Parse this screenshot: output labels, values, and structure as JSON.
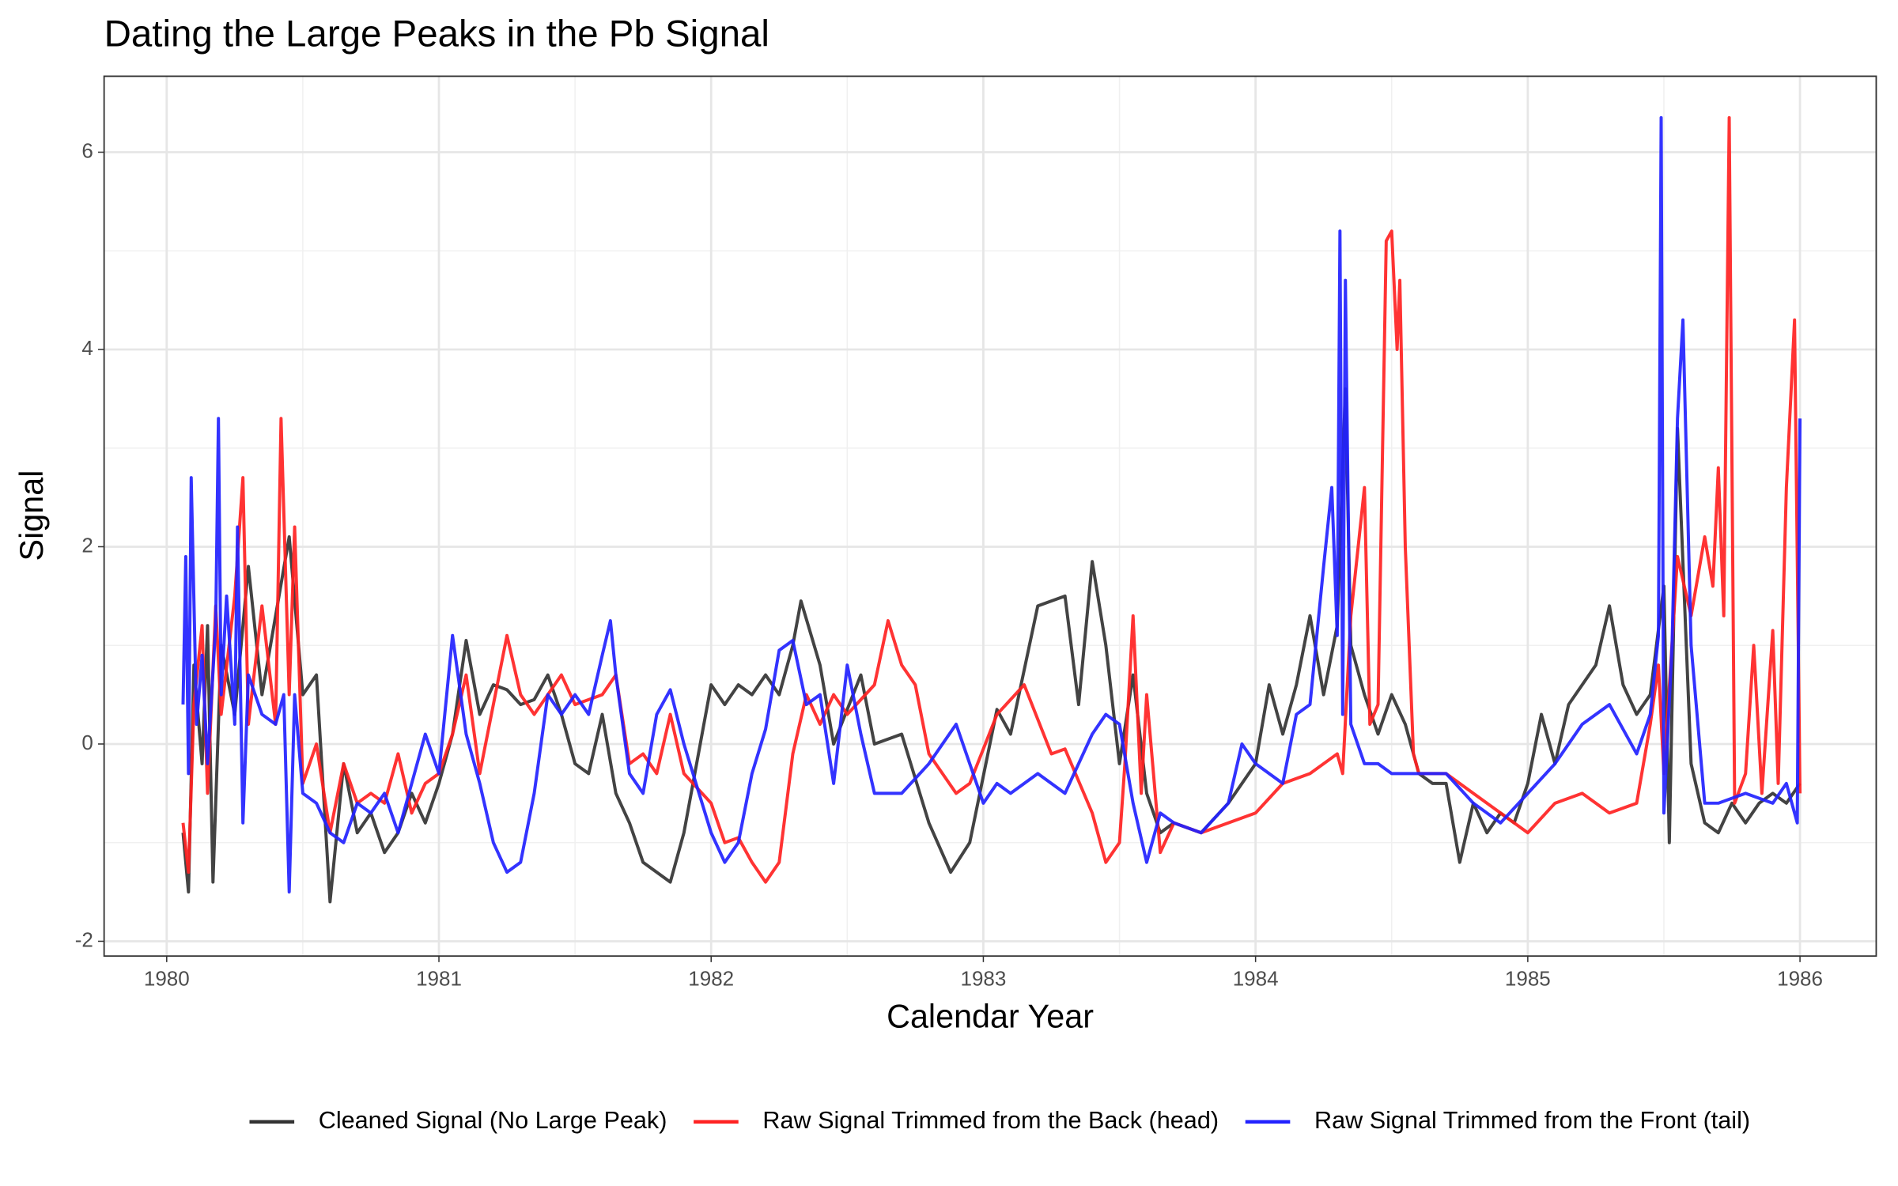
{
  "chart_data": {
    "type": "line",
    "title": "Dating the Large Peaks in the Pb Signal",
    "x_label": "Calendar Year",
    "y_label": "Signal",
    "xlim": [
      1979.77,
      1986.28
    ],
    "ylim": [
      -2.15,
      6.77
    ],
    "xticks": [
      1980,
      1981,
      1982,
      1983,
      1984,
      1985,
      1986
    ],
    "yticks": [
      -2,
      0,
      2,
      4,
      6
    ],
    "grid": true,
    "legend": "bottom",
    "series": [
      {
        "name": "Cleaned Signal (No Large Peak)",
        "color": "#333333",
        "x": [
          1980.06,
          1980.08,
          1980.1,
          1980.13,
          1980.15,
          1980.17,
          1980.2,
          1980.25,
          1980.3,
          1980.35,
          1980.4,
          1980.45,
          1980.5,
          1980.55,
          1980.6,
          1980.65,
          1980.7,
          1980.75,
          1980.8,
          1980.85,
          1980.9,
          1980.95,
          1981.0,
          1981.05,
          1981.1,
          1981.15,
          1981.2,
          1981.25,
          1981.3,
          1981.35,
          1981.4,
          1981.45,
          1981.5,
          1981.55,
          1981.6,
          1981.65,
          1981.7,
          1981.75,
          1981.8,
          1981.85,
          1981.9,
          1982.0,
          1982.05,
          1982.1,
          1982.15,
          1982.2,
          1982.25,
          1982.3,
          1982.33,
          1982.4,
          1982.45,
          1982.55,
          1982.6,
          1982.7,
          1982.8,
          1982.88,
          1982.95,
          1983.05,
          1983.1,
          1983.2,
          1983.3,
          1983.35,
          1983.4,
          1983.45,
          1983.5,
          1983.55,
          1983.6,
          1983.65,
          1983.7,
          1983.8,
          1983.9,
          1984.0,
          1984.05,
          1984.1,
          1984.15,
          1984.2,
          1984.25,
          1984.3,
          1984.33,
          1984.35,
          1984.4,
          1984.45,
          1984.5,
          1984.55,
          1984.6,
          1984.65,
          1984.7,
          1984.75,
          1984.8,
          1984.85,
          1984.9,
          1984.95,
          1985.0,
          1985.05,
          1985.1,
          1985.15,
          1985.2,
          1985.25,
          1985.3,
          1985.35,
          1985.4,
          1985.45,
          1985.5,
          1985.52,
          1985.55,
          1985.6,
          1985.65,
          1985.7,
          1985.75,
          1985.8,
          1985.85,
          1985.9,
          1985.95,
          1986.0
        ],
        "values": [
          -0.9,
          -1.5,
          0.8,
          -0.2,
          1.2,
          -1.4,
          1.0,
          0.3,
          1.8,
          0.5,
          1.3,
          2.1,
          0.5,
          0.7,
          -1.6,
          -0.2,
          -0.9,
          -0.7,
          -1.1,
          -0.9,
          -0.5,
          -0.8,
          -0.4,
          0.1,
          1.05,
          0.3,
          0.6,
          0.55,
          0.4,
          0.45,
          0.7,
          0.3,
          -0.2,
          -0.3,
          0.3,
          -0.5,
          -0.8,
          -1.2,
          -1.3,
          -1.4,
          -0.9,
          0.6,
          0.4,
          0.6,
          0.5,
          0.7,
          0.5,
          1.0,
          1.45,
          0.8,
          0.0,
          0.7,
          0.0,
          0.1,
          -0.8,
          -1.3,
          -1.0,
          0.35,
          0.1,
          1.4,
          1.5,
          0.4,
          1.85,
          1.0,
          -0.2,
          0.7,
          -0.5,
          -0.9,
          -0.8,
          -0.9,
          -0.6,
          -0.2,
          0.6,
          0.1,
          0.6,
          1.3,
          0.5,
          1.2,
          3.6,
          1.0,
          0.5,
          0.1,
          0.5,
          0.2,
          -0.3,
          -0.4,
          -0.4,
          -1.2,
          -0.6,
          -0.9,
          -0.7,
          -0.8,
          -0.4,
          0.3,
          -0.2,
          0.4,
          0.6,
          0.8,
          1.4,
          0.6,
          0.3,
          0.5,
          1.6,
          -1.0,
          3.2,
          -0.2,
          -0.8,
          -0.9,
          -0.6,
          -0.8,
          -0.6,
          -0.5,
          -0.6,
          -0.4
        ]
      },
      {
        "name": "Raw Signal Trimmed from the Back (head)",
        "color": "#ff2222",
        "x": [
          1980.06,
          1980.08,
          1980.1,
          1980.13,
          1980.15,
          1980.18,
          1980.2,
          1980.25,
          1980.28,
          1980.3,
          1980.35,
          1980.4,
          1980.42,
          1980.45,
          1980.47,
          1980.5,
          1980.55,
          1980.6,
          1980.65,
          1980.7,
          1980.75,
          1980.8,
          1980.85,
          1980.9,
          1980.95,
          1981.0,
          1981.05,
          1981.1,
          1981.15,
          1981.25,
          1981.3,
          1981.35,
          1981.45,
          1981.5,
          1981.6,
          1981.65,
          1981.7,
          1981.75,
          1981.8,
          1981.85,
          1981.9,
          1982.0,
          1982.05,
          1982.1,
          1982.15,
          1982.2,
          1982.25,
          1982.3,
          1982.35,
          1982.4,
          1982.45,
          1982.5,
          1982.6,
          1982.65,
          1982.7,
          1982.75,
          1982.8,
          1982.9,
          1982.95,
          1983.05,
          1983.15,
          1983.25,
          1983.3,
          1983.4,
          1983.45,
          1983.5,
          1983.52,
          1983.55,
          1983.58,
          1983.6,
          1983.65,
          1983.7,
          1983.8,
          1983.9,
          1984.0,
          1984.1,
          1984.2,
          1984.3,
          1984.32,
          1984.35,
          1984.4,
          1984.42,
          1984.45,
          1984.48,
          1984.5,
          1984.52,
          1984.53,
          1984.55,
          1984.58,
          1984.6,
          1984.7,
          1984.8,
          1984.9,
          1985.0,
          1985.1,
          1985.2,
          1985.3,
          1985.4,
          1985.45,
          1985.48,
          1985.5,
          1985.55,
          1985.6,
          1985.65,
          1985.68,
          1985.7,
          1985.72,
          1985.74,
          1985.76,
          1985.8,
          1985.83,
          1985.86,
          1985.9,
          1985.92,
          1985.95,
          1985.98,
          1986.0
        ],
        "values": [
          -0.8,
          -1.3,
          0.4,
          1.2,
          -0.5,
          1.4,
          0.3,
          1.5,
          2.7,
          0.2,
          1.4,
          0.2,
          3.3,
          0.5,
          2.2,
          -0.4,
          0.0,
          -0.9,
          -0.2,
          -0.6,
          -0.5,
          -0.6,
          -0.1,
          -0.7,
          -0.4,
          -0.3,
          0.1,
          0.7,
          -0.3,
          1.1,
          0.5,
          0.3,
          0.7,
          0.4,
          0.5,
          0.7,
          -0.2,
          -0.1,
          -0.3,
          0.3,
          -0.3,
          -0.6,
          -1.0,
          -0.95,
          -1.2,
          -1.4,
          -1.2,
          -0.1,
          0.5,
          0.2,
          0.5,
          0.3,
          0.6,
          1.25,
          0.8,
          0.6,
          -0.1,
          -0.5,
          -0.4,
          0.3,
          0.6,
          -0.1,
          -0.05,
          -0.7,
          -1.2,
          -1.0,
          -0.2,
          1.3,
          -0.5,
          0.5,
          -1.1,
          -0.8,
          -0.9,
          -0.8,
          -0.7,
          -0.4,
          -0.3,
          -0.1,
          -0.3,
          1.3,
          2.6,
          0.2,
          0.4,
          5.1,
          5.2,
          4.0,
          4.7,
          2.0,
          -0.1,
          -0.3,
          -0.3,
          -0.5,
          -0.7,
          -0.9,
          -0.6,
          -0.5,
          -0.7,
          -0.6,
          0.2,
          0.8,
          -0.3,
          1.9,
          1.3,
          2.1,
          1.6,
          2.8,
          1.3,
          6.35,
          -0.6,
          -0.3,
          1.0,
          -0.5,
          1.15,
          -0.4,
          2.6,
          4.3,
          -0.5
        ]
      },
      {
        "name": "Raw Signal Trimmed from the Front (tail)",
        "color": "#2222ff",
        "x": [
          1980.06,
          1980.07,
          1980.08,
          1980.09,
          1980.11,
          1980.13,
          1980.15,
          1980.18,
          1980.19,
          1980.2,
          1980.22,
          1980.25,
          1980.26,
          1980.28,
          1980.3,
          1980.35,
          1980.4,
          1980.43,
          1980.45,
          1980.47,
          1980.5,
          1980.55,
          1980.6,
          1980.65,
          1980.7,
          1980.75,
          1980.8,
          1980.85,
          1980.9,
          1980.95,
          1981.0,
          1981.05,
          1981.1,
          1981.15,
          1981.2,
          1981.25,
          1981.3,
          1981.35,
          1981.4,
          1981.45,
          1981.5,
          1981.55,
          1981.6,
          1981.63,
          1981.65,
          1981.7,
          1981.75,
          1981.8,
          1981.85,
          1981.9,
          1982.0,
          1982.05,
          1982.1,
          1982.15,
          1982.2,
          1982.25,
          1982.3,
          1982.35,
          1982.4,
          1982.45,
          1982.5,
          1982.55,
          1982.6,
          1982.7,
          1982.8,
          1982.9,
          1983.0,
          1983.05,
          1983.1,
          1983.2,
          1983.3,
          1983.4,
          1983.45,
          1983.5,
          1983.55,
          1983.6,
          1983.65,
          1983.7,
          1983.8,
          1983.9,
          1983.95,
          1984.0,
          1984.1,
          1984.15,
          1984.2,
          1984.25,
          1984.28,
          1984.3,
          1984.31,
          1984.32,
          1984.33,
          1984.35,
          1984.4,
          1984.45,
          1984.5,
          1984.6,
          1984.7,
          1984.8,
          1984.9,
          1985.0,
          1985.1,
          1985.2,
          1985.3,
          1985.4,
          1985.45,
          1985.48,
          1985.49,
          1985.5,
          1985.53,
          1985.55,
          1985.57,
          1985.6,
          1985.65,
          1985.7,
          1985.8,
          1985.9,
          1985.95,
          1985.99,
          1986.0
        ],
        "values": [
          0.4,
          1.9,
          -0.3,
          2.7,
          0.2,
          0.9,
          -0.2,
          1.2,
          3.3,
          0.5,
          1.5,
          0.2,
          2.2,
          -0.8,
          0.7,
          0.3,
          0.2,
          0.5,
          -1.5,
          0.5,
          -0.5,
          -0.6,
          -0.9,
          -1.0,
          -0.6,
          -0.7,
          -0.5,
          -0.9,
          -0.4,
          0.1,
          -0.3,
          1.1,
          0.1,
          -0.4,
          -1.0,
          -1.3,
          -1.2,
          -0.5,
          0.5,
          0.3,
          0.5,
          0.3,
          0.9,
          1.25,
          0.7,
          -0.3,
          -0.5,
          0.3,
          0.55,
          0.0,
          -0.9,
          -1.2,
          -1.0,
          -0.3,
          0.15,
          0.95,
          1.05,
          0.4,
          0.5,
          -0.4,
          0.8,
          0.1,
          -0.5,
          -0.5,
          -0.2,
          0.2,
          -0.6,
          -0.4,
          -0.5,
          -0.3,
          -0.5,
          0.1,
          0.3,
          0.2,
          -0.6,
          -1.2,
          -0.7,
          -0.8,
          -0.9,
          -0.6,
          0.0,
          -0.2,
          -0.4,
          0.3,
          0.4,
          1.8,
          2.6,
          1.1,
          5.2,
          0.3,
          4.7,
          0.2,
          -0.2,
          -0.2,
          -0.3,
          -0.3,
          -0.3,
          -0.6,
          -0.8,
          -0.5,
          -0.2,
          0.2,
          0.4,
          -0.1,
          0.3,
          1.1,
          6.35,
          -0.7,
          1.0,
          3.3,
          4.3,
          1.0,
          -0.6,
          -0.6,
          -0.5,
          -0.6,
          -0.4,
          -0.8,
          3.3
        ]
      }
    ]
  }
}
